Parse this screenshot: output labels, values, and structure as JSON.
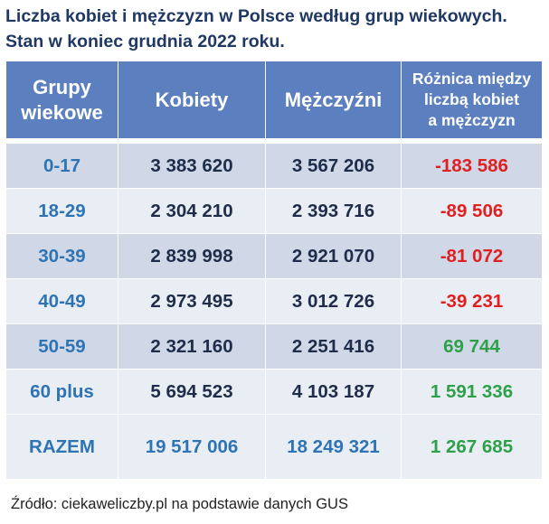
{
  "title": {
    "line1": "Liczba kobiet i mężczyzn w Polsce według grup wiekowych.",
    "line2": "Stan w koniec grudnia 2022 roku."
  },
  "chart_data": {
    "type": "table",
    "columns": [
      [
        "Grupy",
        "wiekowe"
      ],
      [
        "Kobiety"
      ],
      [
        "Mężczyźni"
      ],
      [
        "Różnica między",
        "liczbą kobiet",
        "a mężczyzn"
      ]
    ],
    "rows": [
      {
        "group": "0-17",
        "women": "3 383 620",
        "men": "3 567 206",
        "diff": "-183 586"
      },
      {
        "group": "18-29",
        "women": "2 304 210",
        "men": "2 393 716",
        "diff": "-89 506"
      },
      {
        "group": "30-39",
        "women": "2 839 998",
        "men": "2 921 070",
        "diff": "-81 072"
      },
      {
        "group": "40-49",
        "women": "2 973 495",
        "men": "3 012 726",
        "diff": "-39 231"
      },
      {
        "group": "50-59",
        "women": "2 321 160",
        "men": "2 251 416",
        "diff": "69 744"
      },
      {
        "group": "60 plus",
        "women": "5 694 523",
        "men": "4 103 187",
        "diff": "1 591 336"
      }
    ],
    "total": {
      "group": "RAZEM",
      "women": "19 517 006",
      "men": "18 249 321",
      "diff": "1 267 685"
    },
    "colors": {
      "header_bg": "#5b7fbf",
      "row_dark": "#d0d8e8",
      "row_light": "#e9edf4",
      "age_text": "#2e74b5",
      "negative": "#e02020",
      "positive": "#2ea04a"
    }
  },
  "source": "Źródło: ciekaweliczby.pl na podstawie danych GUS"
}
